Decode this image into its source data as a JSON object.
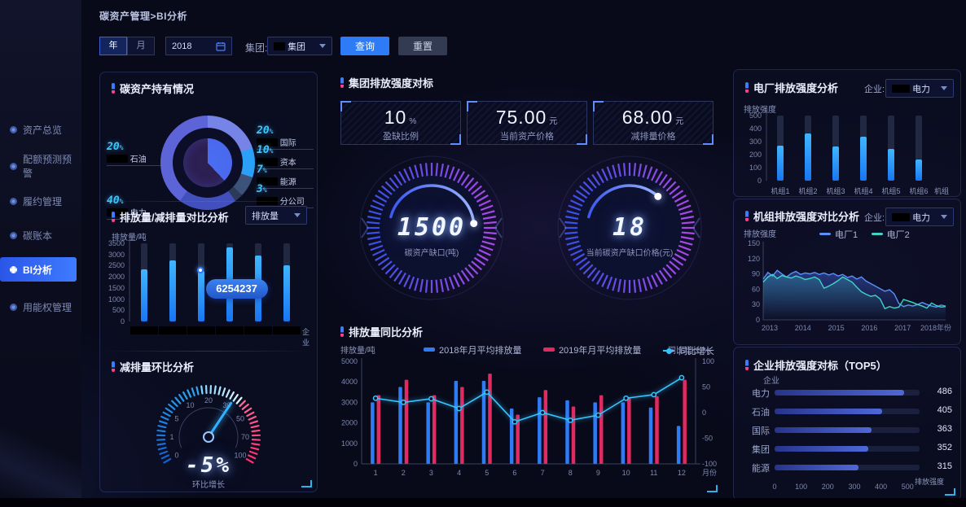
{
  "app": {
    "breadcrumb": "碳资产管理>BI分析"
  },
  "filters": {
    "year_tab": "年",
    "month_tab": "月",
    "date_value": "2018",
    "group_label": "集团:",
    "group_value": "集团",
    "query_button": "查询",
    "reset_button": "重置"
  },
  "sidebar": {
    "items": [
      {
        "label": "资产总览",
        "active": false
      },
      {
        "label": "配额预测预警",
        "active": false
      },
      {
        "label": "履约管理",
        "active": false
      },
      {
        "label": "碳账本",
        "active": false
      },
      {
        "label": "BI分析",
        "active": true
      },
      {
        "label": "用能权管理",
        "active": false
      }
    ]
  },
  "left_panel": {
    "holdings_title": "碳资产持有情况",
    "compare_title": "排放量/减排量对比分析",
    "compare_dropdown": "排放量",
    "compare_y_label": "排放量/吨",
    "compare_x_label": "企业",
    "tooltip_value": "6254237",
    "mom_title": "减排量环比分析",
    "mom_value": "-5%",
    "mom_caption": "环比增长"
  },
  "middle": {
    "benchmark_title": "集团排放强度对标",
    "cards": [
      {
        "value": "10",
        "unit": "%",
        "label": "盈缺比例"
      },
      {
        "value": "75.00",
        "unit": "元",
        "label": "当前资产价格"
      },
      {
        "value": "68.00",
        "unit": "元",
        "label": "减排量价格"
      }
    ],
    "gauges": [
      {
        "value": "1500",
        "label": "碳资产缺口(吨)"
      },
      {
        "value": "18",
        "label": "当前碳资产缺口价格(元)"
      }
    ],
    "yoy_title": "排放量同比分析",
    "yoy_y_left": "排放量/吨",
    "yoy_y_right": "同比增长/%",
    "yoy_x_label": "月份"
  },
  "right_panel": {
    "plant_title": "电厂排放强度分析",
    "enterprise_label": "企业:",
    "enterprise_value": "电力",
    "plant_y_label": "排放强度",
    "plant_x_label": "机组",
    "unit_title": "机组排放强度对比分析",
    "unit_y_label": "排放强度",
    "top5_title": "企业排放强度对标（TOP5）",
    "top5_y_label": "企业",
    "top5_x_label": "排放强度"
  },
  "chart_data": [
    {
      "key": "holdings",
      "type": "pie",
      "title": "碳资产持有情况",
      "segments": [
        {
          "label": "国际",
          "value": 20,
          "color": "#7584e6",
          "side": "right"
        },
        {
          "label": "资本",
          "value": 10,
          "color": "#2aa0f8",
          "side": "right"
        },
        {
          "label": "能源",
          "value": 7,
          "color": "#3d5278",
          "side": "right"
        },
        {
          "label": "分公司",
          "value": 3,
          "color": "#2b3a58",
          "side": "right"
        },
        {
          "label": "石油",
          "value": 20,
          "color": "#4250bd",
          "side": "left"
        },
        {
          "label": "电力",
          "value": 40,
          "color": "#5d64d8",
          "side": "left"
        }
      ],
      "labels_redacted": true,
      "inner_pie": {
        "value": 38,
        "color": "#4a6cf0"
      }
    },
    {
      "key": "compare",
      "type": "bar",
      "title": "排放量/减排量对比分析",
      "ylabel": "排放量/吨",
      "xlabel": "企业",
      "ylim": [
        0,
        3500
      ],
      "yticks": [
        0,
        500,
        1000,
        1500,
        2000,
        2500,
        3000,
        3500
      ],
      "values": [
        2350,
        2750,
        2250,
        3300,
        2950,
        2500
      ],
      "bar_color": "#2196f3",
      "x_labels_redacted": true,
      "tooltip": {
        "index": 2,
        "text": "6254237"
      }
    },
    {
      "key": "mom",
      "type": "gauge",
      "title": "减排量环比分析",
      "value": "-5%",
      "caption": "环比增长",
      "scale_labels": [
        "0",
        "1",
        "5",
        "10",
        "20",
        "30",
        "50",
        "70",
        "100"
      ],
      "needle_fraction": 0.64
    },
    {
      "key": "rings",
      "type": "progress-rings",
      "items": [
        {
          "value": "1500",
          "label": "碳资产缺口(吨)",
          "arc_start_deg": 195,
          "arc_end_deg": 354
        },
        {
          "value": "18",
          "label": "当前碳资产缺口价格(元)",
          "arc_start_deg": 195,
          "arc_end_deg": 312
        }
      ]
    },
    {
      "key": "yoy",
      "type": "bar+line",
      "title": "排放量同比分析",
      "categories": [
        1,
        2,
        3,
        4,
        5,
        6,
        7,
        8,
        9,
        10,
        11,
        12
      ],
      "xlabel": "月份",
      "ylabel_left": "排放量/吨",
      "ylabel_right": "同比增长/%",
      "ylim_left": [
        0,
        5000
      ],
      "yticks_left": [
        0,
        1000,
        2000,
        3000,
        4000,
        5000
      ],
      "ylim_right": [
        -100,
        100
      ],
      "yticks_right": [
        100,
        50,
        0,
        -50,
        -100
      ],
      "series": [
        {
          "name": "2018年月平均排放量",
          "type": "bar",
          "color": "#2f7bf6",
          "values": [
            3000,
            3750,
            3000,
            4050,
            4050,
            2700,
            3250,
            3100,
            3000,
            3000,
            2750,
            1850
          ]
        },
        {
          "name": "2019年月平均排放量",
          "type": "bar",
          "color": "#df2a62",
          "values": [
            3350,
            4100,
            3350,
            3750,
            4400,
            2400,
            3600,
            2800,
            3350,
            3250,
            3300,
            4100
          ]
        },
        {
          "name": "同比增长",
          "type": "line",
          "axis": "right",
          "color": "#35c5ff",
          "values": [
            28,
            20,
            27,
            8,
            40,
            -18,
            0,
            -15,
            -5,
            28,
            35,
            68
          ]
        }
      ]
    },
    {
      "key": "plant",
      "type": "bar",
      "title": "电厂排放强度分析",
      "categories": [
        "机组1",
        "机组2",
        "机组3",
        "机组4",
        "机组5",
        "机组6"
      ],
      "values": [
        270,
        365,
        260,
        340,
        245,
        160
      ],
      "ylim": [
        0,
        500
      ],
      "yticks": [
        0,
        100,
        200,
        300,
        400,
        500
      ],
      "bar_color": "#35b4f0",
      "ylabel": "排放强度",
      "xlabel": "机组"
    },
    {
      "key": "unit",
      "type": "line",
      "title": "机组排放强度对比分析",
      "x_ticks": [
        "2013",
        "2014",
        "2015",
        "2016",
        "2017",
        "2018年份"
      ],
      "ylim": [
        0,
        150
      ],
      "yticks": [
        0,
        30,
        60,
        90,
        120,
        150
      ],
      "legend": [
        "电厂1",
        "电厂2"
      ],
      "series": [
        {
          "name": "电厂1",
          "color": "#5b8ff9",
          "values": [
            80,
            93,
            86,
            97,
            90,
            84,
            91,
            95,
            89,
            92,
            90,
            93,
            89,
            92,
            88,
            91,
            86,
            89,
            83,
            86,
            80,
            84,
            76,
            71,
            66,
            61,
            56,
            59,
            51,
            32,
            26,
            29,
            27,
            30,
            34,
            30,
            27,
            25,
            29,
            27
          ]
        },
        {
          "name": "电厂2",
          "color": "#3fd4c5",
          "values": [
            74,
            84,
            89,
            81,
            87,
            84,
            82,
            86,
            83,
            79,
            81,
            84,
            79,
            62,
            66,
            71,
            77,
            84,
            79,
            74,
            64,
            55,
            50,
            46,
            48,
            41,
            22,
            26,
            23,
            25,
            40,
            37,
            34,
            30,
            27,
            23,
            33,
            28,
            25,
            26
          ]
        }
      ]
    },
    {
      "key": "top5",
      "type": "hbar",
      "title": "企业排放强度对标（TOP5）",
      "categories": [
        "电力",
        "石油",
        "国际",
        "集团",
        "能源"
      ],
      "values": [
        486,
        405,
        363,
        352,
        315
      ],
      "xticks": [
        0,
        100,
        200,
        300,
        400,
        500
      ],
      "track_max": 545,
      "ylabel": "企业",
      "xlabel": "排放强度"
    }
  ]
}
